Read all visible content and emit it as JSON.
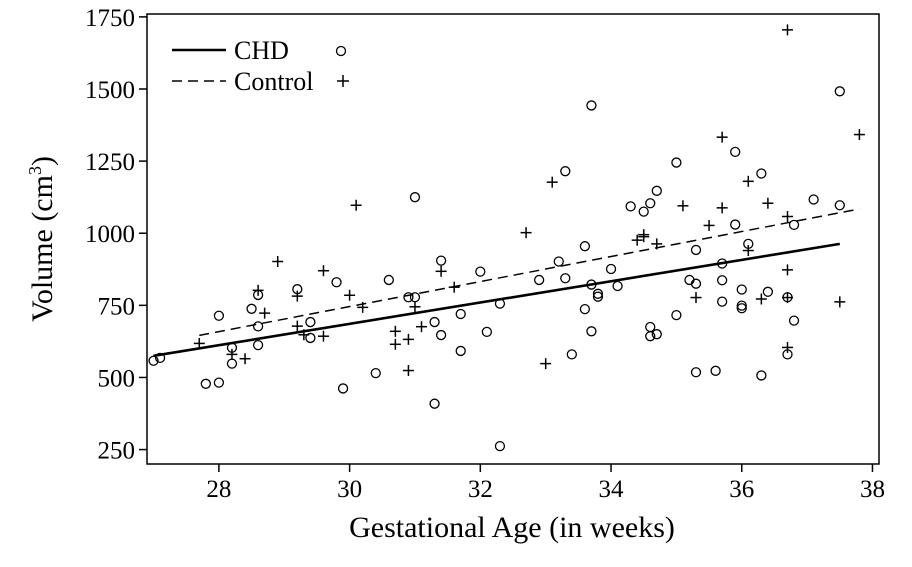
{
  "chart_data": {
    "type": "scatter",
    "xlabel": "Gestational Age (in weeks)",
    "ylabel_main": "Volume (cm",
    "ylabel_sup": "3",
    "ylabel_close": ")",
    "xlim": [
      26.9,
      38.1
    ],
    "ylim": [
      200,
      1760
    ],
    "xticks": [
      28,
      30,
      32,
      34,
      36,
      38
    ],
    "yticks": [
      250,
      500,
      750,
      1000,
      1250,
      1500,
      1750
    ],
    "grid": false,
    "legend_position": "top-left",
    "series": [
      {
        "name": "CHD",
        "marker": "circle",
        "line_style": "solid",
        "fit_line": {
          "x": [
            27.0,
            37.5
          ],
          "y": [
            575,
            963
          ]
        },
        "points": [
          [
            27.0,
            558
          ],
          [
            27.1,
            568
          ],
          [
            27.8,
            478
          ],
          [
            28.0,
            482
          ],
          [
            28.0,
            714
          ],
          [
            28.2,
            603
          ],
          [
            28.2,
            548
          ],
          [
            28.5,
            738
          ],
          [
            28.6,
            786
          ],
          [
            28.6,
            677
          ],
          [
            28.6,
            612
          ],
          [
            29.2,
            806
          ],
          [
            29.4,
            637
          ],
          [
            29.4,
            692
          ],
          [
            29.8,
            830
          ],
          [
            29.9,
            462
          ],
          [
            30.4,
            515
          ],
          [
            30.6,
            838
          ],
          [
            30.9,
            778
          ],
          [
            31.0,
            778
          ],
          [
            31.0,
            1125
          ],
          [
            31.3,
            409
          ],
          [
            31.3,
            692
          ],
          [
            31.4,
            647
          ],
          [
            31.4,
            905
          ],
          [
            31.7,
            720
          ],
          [
            31.7,
            592
          ],
          [
            32.0,
            867
          ],
          [
            32.1,
            658
          ],
          [
            32.3,
            262
          ],
          [
            32.3,
            756
          ],
          [
            32.9,
            838
          ],
          [
            33.2,
            902
          ],
          [
            33.3,
            1215
          ],
          [
            33.3,
            844
          ],
          [
            33.4,
            580
          ],
          [
            33.6,
            955
          ],
          [
            33.6,
            737
          ],
          [
            33.7,
            660
          ],
          [
            33.7,
            822
          ],
          [
            33.7,
            1443
          ],
          [
            33.8,
            790
          ],
          [
            33.8,
            780
          ],
          [
            34.0,
            876
          ],
          [
            34.1,
            817
          ],
          [
            34.3,
            1093
          ],
          [
            34.5,
            1075
          ],
          [
            34.6,
            1104
          ],
          [
            34.6,
            675
          ],
          [
            34.6,
            643
          ],
          [
            34.7,
            1147
          ],
          [
            34.7,
            650
          ],
          [
            35.0,
            1245
          ],
          [
            35.0,
            716
          ],
          [
            35.2,
            838
          ],
          [
            35.3,
            942
          ],
          [
            35.3,
            825
          ],
          [
            35.3,
            518
          ],
          [
            35.6,
            523
          ],
          [
            35.7,
            837
          ],
          [
            35.7,
            895
          ],
          [
            35.7,
            763
          ],
          [
            35.9,
            1030
          ],
          [
            35.9,
            1282
          ],
          [
            36.0,
            805
          ],
          [
            36.0,
            749
          ],
          [
            36.0,
            740
          ],
          [
            36.1,
            963
          ],
          [
            36.3,
            1207
          ],
          [
            36.3,
            507
          ],
          [
            36.4,
            797
          ],
          [
            36.7,
            580
          ],
          [
            36.7,
            778
          ],
          [
            36.8,
            1029
          ],
          [
            36.8,
            697
          ],
          [
            37.1,
            1117
          ],
          [
            37.5,
            1492
          ],
          [
            37.5,
            1097
          ]
        ]
      },
      {
        "name": "Control",
        "marker": "plus",
        "line_style": "dashed",
        "fit_line": {
          "x": [
            27.7,
            37.8
          ],
          "y": [
            646,
            1084
          ]
        },
        "points": [
          [
            27.7,
            618
          ],
          [
            28.2,
            580
          ],
          [
            28.4,
            565
          ],
          [
            28.6,
            802
          ],
          [
            28.7,
            723
          ],
          [
            28.9,
            902
          ],
          [
            29.2,
            678
          ],
          [
            29.2,
            782
          ],
          [
            29.3,
            648
          ],
          [
            29.6,
            643
          ],
          [
            29.6,
            870
          ],
          [
            30.0,
            785
          ],
          [
            30.1,
            1097
          ],
          [
            30.2,
            743
          ],
          [
            30.7,
            615
          ],
          [
            30.7,
            660
          ],
          [
            30.9,
            524
          ],
          [
            30.9,
            632
          ],
          [
            31.0,
            745
          ],
          [
            31.1,
            676
          ],
          [
            31.4,
            868
          ],
          [
            31.6,
            813
          ],
          [
            32.7,
            1002
          ],
          [
            33.0,
            548
          ],
          [
            33.1,
            1177
          ],
          [
            34.4,
            976
          ],
          [
            34.5,
            995
          ],
          [
            34.5,
            988
          ],
          [
            34.7,
            963
          ],
          [
            35.1,
            1095
          ],
          [
            35.3,
            777
          ],
          [
            35.5,
            1027
          ],
          [
            35.7,
            1333
          ],
          [
            35.7,
            1088
          ],
          [
            36.1,
            1180
          ],
          [
            36.1,
            940
          ],
          [
            36.3,
            772
          ],
          [
            36.4,
            1104
          ],
          [
            36.7,
            1705
          ],
          [
            36.7,
            1058
          ],
          [
            36.7,
            873
          ],
          [
            36.7,
            777
          ],
          [
            36.7,
            604
          ],
          [
            37.5,
            762
          ],
          [
            37.8,
            1342
          ]
        ]
      }
    ]
  }
}
